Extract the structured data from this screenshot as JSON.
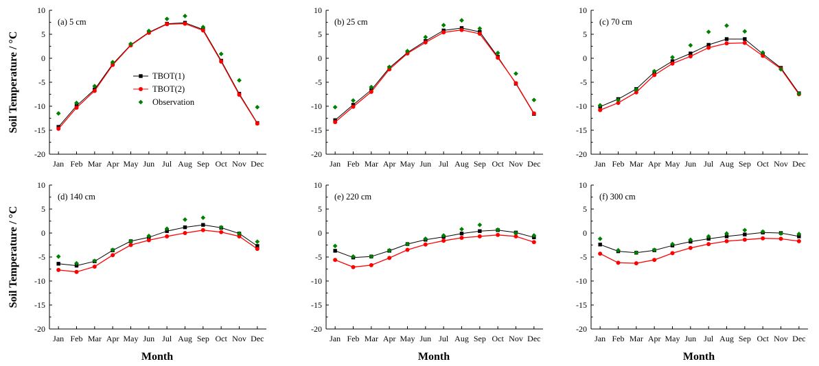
{
  "figure": {
    "ylabel": "Soil Temperature / °C",
    "xlabel": "Month"
  },
  "legend": {
    "placement": "inside panel (a), center-left",
    "entries": [
      {
        "name": "TBOT(1)",
        "color": "#000000",
        "marker": "square"
      },
      {
        "name": "TBOT(2)",
        "color": "#ff0000",
        "marker": "circle"
      },
      {
        "name": "Observation",
        "color": "#008000",
        "marker": "diamond"
      }
    ]
  },
  "chart_data": [
    {
      "type": "line",
      "title": "(a) 5 cm",
      "categories": [
        "Jan",
        "Feb",
        "Mar",
        "Apr",
        "May",
        "Jun",
        "Jul",
        "Aug",
        "Sep",
        "Oct",
        "Nov",
        "Dec"
      ],
      "ylim": [
        -20,
        10
      ],
      "yticks": [
        -20,
        -15,
        -10,
        -5,
        0,
        5,
        10
      ],
      "series": [
        {
          "name": "TBOT(1)",
          "values": [
            -14.3,
            -9.9,
            -6.5,
            -1.2,
            2.8,
            5.4,
            7.2,
            7.4,
            6.0,
            -0.5,
            -7.4,
            -13.5
          ]
        },
        {
          "name": "TBOT(2)",
          "values": [
            -14.7,
            -10.3,
            -6.8,
            -1.4,
            2.7,
            5.3,
            7.1,
            7.2,
            5.8,
            -0.7,
            -7.6,
            -13.6
          ]
        },
        {
          "name": "Observation",
          "values": [
            -11.5,
            -9.3,
            -5.8,
            -0.8,
            3.0,
            5.7,
            8.2,
            8.8,
            6.5,
            0.9,
            -4.6,
            -10.2
          ]
        }
      ]
    },
    {
      "type": "line",
      "title": "(b) 25 cm",
      "categories": [
        "Jan",
        "Feb",
        "Mar",
        "Apr",
        "May",
        "Jun",
        "Jul",
        "Aug",
        "Sep",
        "Oct",
        "Nov",
        "Dec"
      ],
      "ylim": [
        -20,
        10
      ],
      "yticks": [
        -20,
        -15,
        -10,
        -5,
        0,
        5,
        10
      ],
      "series": [
        {
          "name": "TBOT(1)",
          "values": [
            -12.9,
            -9.7,
            -6.6,
            -2.0,
            1.2,
            3.6,
            5.8,
            6.3,
            5.5,
            0.3,
            -5.3,
            -11.6
          ]
        },
        {
          "name": "TBOT(2)",
          "values": [
            -13.3,
            -10.1,
            -7.0,
            -2.3,
            1.0,
            3.3,
            5.4,
            5.9,
            5.1,
            0.1,
            -5.2,
            -11.5
          ]
        },
        {
          "name": "Observation",
          "values": [
            -10.2,
            -8.8,
            -6.0,
            -1.8,
            1.5,
            4.4,
            6.9,
            7.9,
            6.2,
            1.1,
            -3.2,
            -8.7
          ]
        }
      ]
    },
    {
      "type": "line",
      "title": "(c) 70 cm",
      "categories": [
        "Jan",
        "Feb",
        "Mar",
        "Apr",
        "May",
        "Jun",
        "Jul",
        "Aug",
        "Sep",
        "Oct",
        "Nov",
        "Dec"
      ],
      "ylim": [
        -20,
        10
      ],
      "yticks": [
        -20,
        -15,
        -10,
        -5,
        0,
        5,
        10
      ],
      "series": [
        {
          "name": "TBOT(1)",
          "values": [
            -10.1,
            -8.5,
            -6.4,
            -2.9,
            -0.6,
            1.0,
            2.8,
            4.0,
            4.0,
            0.9,
            -2.0,
            -7.3
          ]
        },
        {
          "name": "TBOT(2)",
          "values": [
            -10.8,
            -9.3,
            -7.1,
            -3.5,
            -1.1,
            0.4,
            2.2,
            3.1,
            3.2,
            0.5,
            -2.2,
            -7.5
          ]
        },
        {
          "name": "Observation",
          "values": [
            -9.8,
            -8.7,
            -6.5,
            -2.7,
            0.2,
            2.7,
            5.5,
            6.8,
            5.6,
            1.2,
            -2.3,
            -7.4
          ]
        }
      ]
    },
    {
      "type": "line",
      "title": "(d) 140 cm",
      "categories": [
        "Jan",
        "Feb",
        "Mar",
        "Apr",
        "May",
        "Jun",
        "Jul",
        "Aug",
        "Sep",
        "Oct",
        "Nov",
        "Dec"
      ],
      "ylim": [
        -20,
        10
      ],
      "yticks": [
        -20,
        -15,
        -10,
        -5,
        0,
        5,
        10
      ],
      "series": [
        {
          "name": "TBOT(1)",
          "values": [
            -6.4,
            -6.8,
            -5.9,
            -3.6,
            -1.7,
            -0.9,
            0.4,
            1.2,
            1.7,
            1.1,
            -0.1,
            -2.7
          ]
        },
        {
          "name": "TBOT(2)",
          "values": [
            -7.7,
            -8.1,
            -7.0,
            -4.6,
            -2.5,
            -1.5,
            -0.7,
            0.0,
            0.6,
            0.2,
            -0.7,
            -3.3
          ]
        },
        {
          "name": "Observation",
          "values": [
            -4.9,
            -6.3,
            -5.8,
            -3.5,
            -1.7,
            -0.6,
            0.9,
            2.8,
            3.2,
            1.2,
            -0.1,
            -1.8
          ]
        }
      ]
    },
    {
      "type": "line",
      "title": "(e) 220 cm",
      "categories": [
        "Jan",
        "Feb",
        "Mar",
        "Apr",
        "May",
        "Jun",
        "Jul",
        "Aug",
        "Sep",
        "Oct",
        "Nov",
        "Dec"
      ],
      "ylim": [
        -20,
        10
      ],
      "yticks": [
        -20,
        -15,
        -10,
        -5,
        0,
        5,
        10
      ],
      "series": [
        {
          "name": "TBOT(1)",
          "values": [
            -3.7,
            -5.1,
            -4.9,
            -3.7,
            -2.3,
            -1.4,
            -0.8,
            -0.1,
            0.4,
            0.6,
            0.1,
            -0.9
          ]
        },
        {
          "name": "TBOT(2)",
          "values": [
            -5.6,
            -7.1,
            -6.7,
            -5.2,
            -3.5,
            -2.4,
            -1.6,
            -1.0,
            -0.7,
            -0.4,
            -0.7,
            -1.9
          ]
        },
        {
          "name": "Observation",
          "values": [
            -2.7,
            -4.9,
            -4.9,
            -3.6,
            -2.3,
            -1.2,
            -0.5,
            0.8,
            1.7,
            0.7,
            0.0,
            -0.5
          ]
        }
      ]
    },
    {
      "type": "line",
      "title": "(f) 300 cm",
      "categories": [
        "Jan",
        "Feb",
        "Mar",
        "Apr",
        "May",
        "Jun",
        "Jul",
        "Aug",
        "Sep",
        "Oct",
        "Nov",
        "Dec"
      ],
      "ylim": [
        -20,
        10
      ],
      "yticks": [
        -20,
        -15,
        -10,
        -5,
        0,
        5,
        10
      ],
      "series": [
        {
          "name": "TBOT(1)",
          "values": [
            -2.4,
            -3.8,
            -4.1,
            -3.6,
            -2.6,
            -1.8,
            -1.2,
            -0.7,
            -0.3,
            0.1,
            0.0,
            -0.7
          ]
        },
        {
          "name": "TBOT(2)",
          "values": [
            -4.3,
            -6.2,
            -6.3,
            -5.6,
            -4.2,
            -3.1,
            -2.3,
            -1.7,
            -1.4,
            -1.1,
            -1.2,
            -1.7
          ]
        },
        {
          "name": "Observation",
          "values": [
            -1.2,
            -3.6,
            -4.1,
            -3.5,
            -2.3,
            -1.4,
            -0.7,
            -0.1,
            0.6,
            0.3,
            -0.1,
            -0.2
          ]
        }
      ]
    }
  ]
}
